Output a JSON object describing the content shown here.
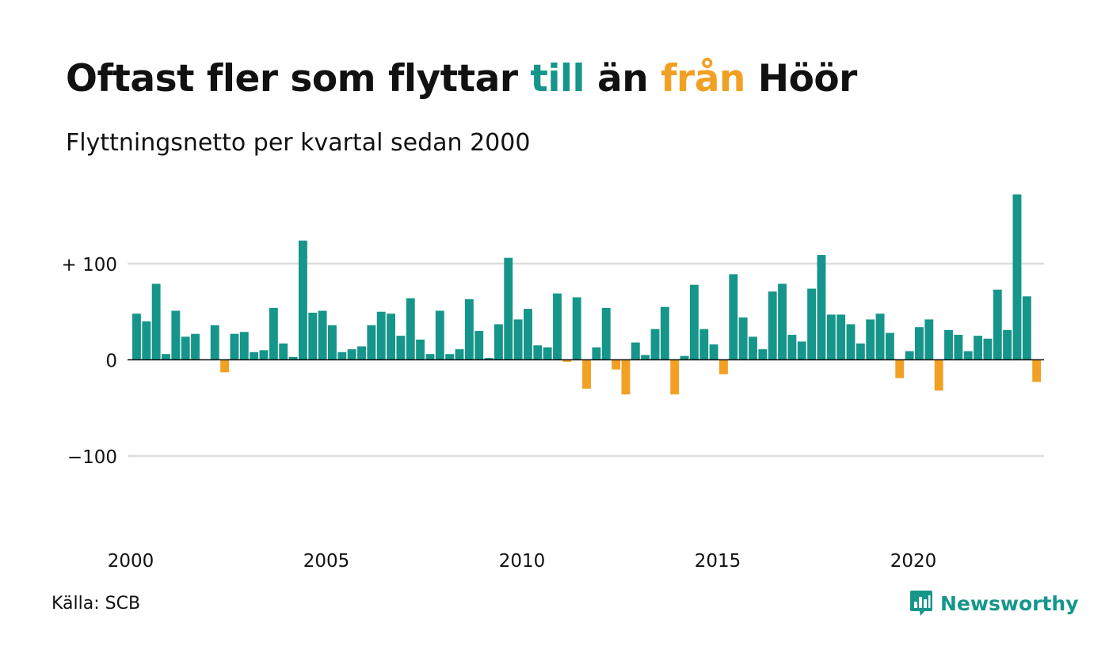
{
  "title": {
    "part1": "Oftast fler som flyttar ",
    "till": "till",
    "part2": " än ",
    "fran": "från",
    "part3": " Höör"
  },
  "subtitle": "Flyttningsnetto per kvartal sedan 2000",
  "source": "Källa: SCB",
  "brand": {
    "name": "Newsworthy",
    "icon": "newsworthy-logo-icon"
  },
  "colors": {
    "positive": "#16968a",
    "negative": "#f2a023",
    "grid": "#dddddd",
    "text": "#111111"
  },
  "chart_data": {
    "type": "bar",
    "title": "Oftast fler som flyttar till än från Höör",
    "subtitle": "Flyttningsnetto per kvartal sedan 2000",
    "ylim": [
      -190,
      175
    ],
    "yticks": [
      100,
      0,
      -100
    ],
    "ytick_labels": [
      "+ 100",
      "0",
      "−100"
    ],
    "grid": true,
    "x_start_year": 2000,
    "xtick_labels": [
      "2000",
      "2005",
      "2010",
      "2015",
      "2020"
    ],
    "series": [
      {
        "name": "",
        "values": [
          48,
          40,
          79,
          6,
          51,
          24,
          27,
          0,
          36,
          -13,
          27,
          29,
          8,
          10,
          54,
          17,
          3,
          124,
          49,
          51,
          36,
          8,
          11,
          14,
          36,
          50,
          48,
          25,
          64,
          21,
          6,
          51,
          6,
          11,
          63,
          30,
          2,
          37,
          106,
          42,
          53,
          15,
          13,
          69,
          -2,
          65,
          -30,
          13,
          54,
          -10,
          -36,
          18,
          5,
          32,
          55,
          -36,
          4,
          78,
          32,
          16,
          -15,
          89,
          44,
          24,
          11,
          71,
          79,
          26,
          19,
          74,
          109,
          47,
          47,
          37,
          17,
          42,
          48,
          28,
          -19,
          9,
          34,
          42,
          -32,
          31,
          26,
          9,
          25,
          22,
          73,
          31,
          172,
          66,
          -23
        ]
      }
    ]
  }
}
